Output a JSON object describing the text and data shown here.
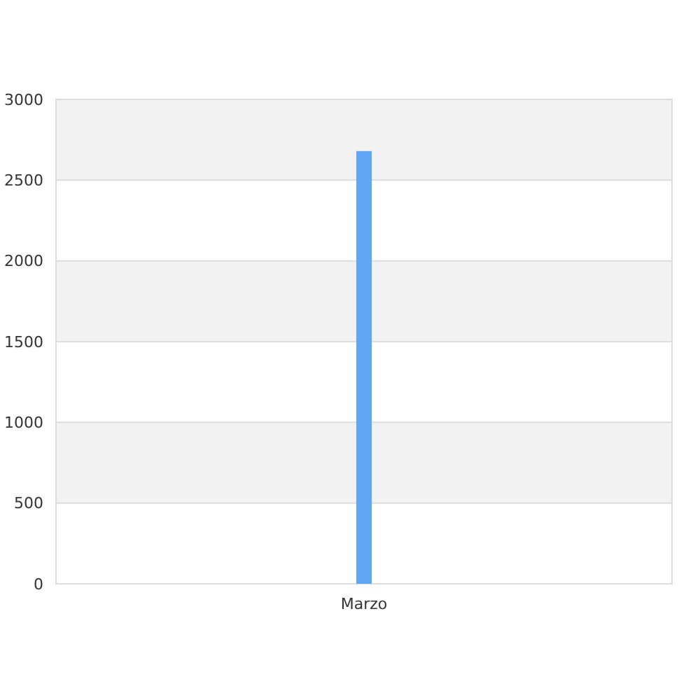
{
  "chart_data": {
    "type": "bar",
    "categories": [
      "Marzo"
    ],
    "values": [
      2680
    ],
    "color": "#60a8f6",
    "ylim": [
      0,
      3000
    ],
    "yticks": [
      0,
      500,
      1000,
      1500,
      2000,
      2500,
      3000
    ],
    "grid": true
  }
}
